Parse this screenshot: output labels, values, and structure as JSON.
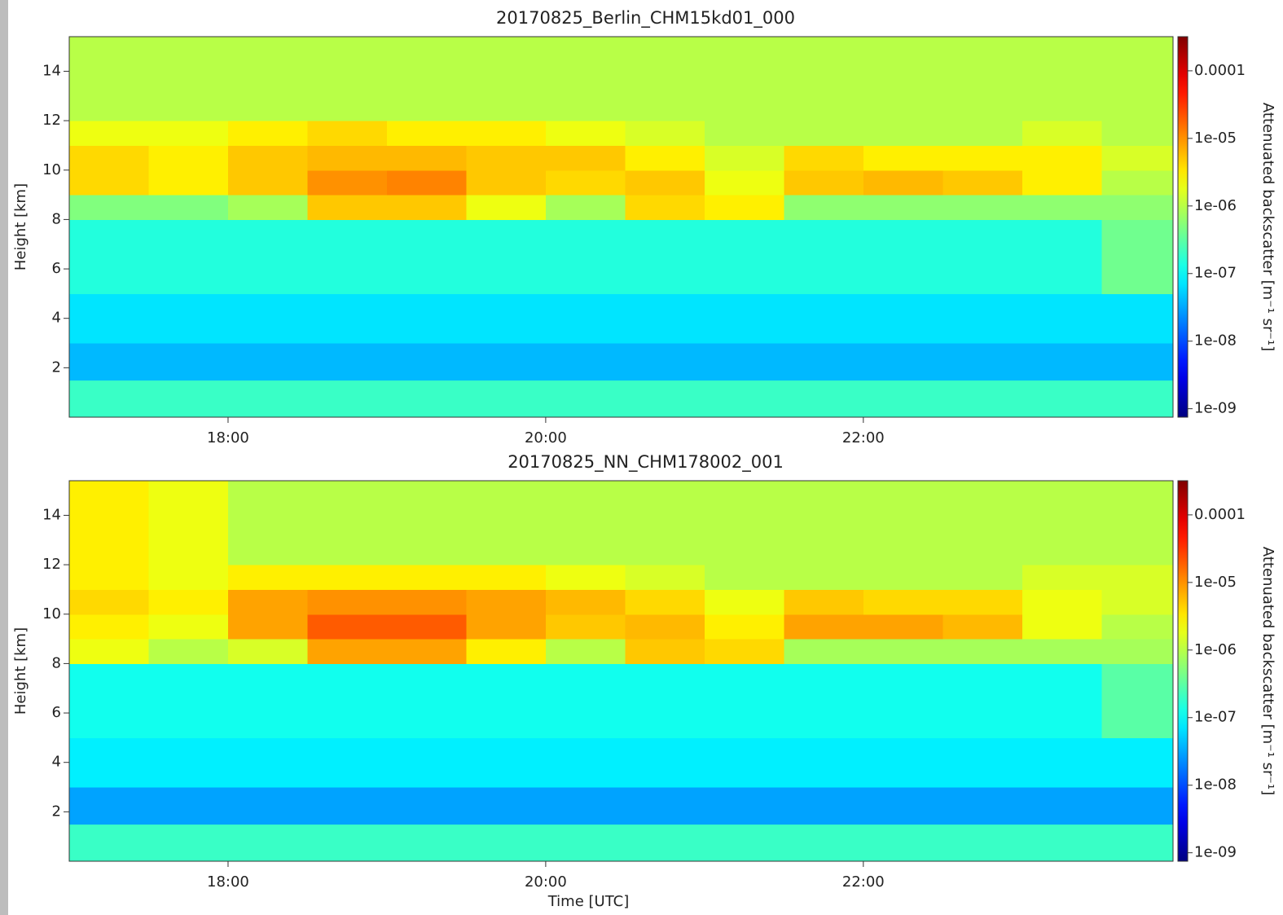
{
  "chart_data": [
    {
      "type": "heatmap",
      "title": "20170825_Berlin_CHM15kd01_000",
      "ylabel": "Height [km]",
      "colorbar_label": "Attenuated backscatter [m⁻¹ sr⁻¹]",
      "colormap": "jet",
      "cscale": "log",
      "x_bins": [
        17,
        17.5,
        18,
        18.5,
        19,
        19.5,
        20,
        20.5,
        21,
        21.5,
        22,
        22.5,
        23,
        23.5,
        23.95
      ],
      "y_bins": [
        0,
        1.5,
        3,
        5,
        8,
        9,
        10,
        11,
        12,
        15.4
      ],
      "z": [
        [
          2e-07,
          2e-07,
          2e-07,
          2e-07,
          2e-07,
          2e-07,
          2e-07,
          2e-07,
          2e-07,
          2e-07,
          2e-07,
          2e-07,
          2e-07,
          2e-07
        ],
        [
          4e-08,
          4e-08,
          4e-08,
          4e-08,
          4e-08,
          4e-08,
          4e-08,
          4e-08,
          4e-08,
          4e-08,
          4e-08,
          4e-08,
          4e-08,
          4e-08
        ],
        [
          7e-08,
          7e-08,
          7e-08,
          7e-08,
          7e-08,
          7e-08,
          7e-08,
          7e-08,
          7e-08,
          7e-08,
          7e-08,
          7e-08,
          7e-08,
          7e-08
        ],
        [
          1.5e-07,
          1.5e-07,
          1.5e-07,
          1.5e-07,
          1.5e-07,
          1.5e-07,
          1.5e-07,
          1.5e-07,
          1.5e-07,
          1.5e-07,
          1.5e-07,
          1.5e-07,
          1.5e-07,
          4e-07
        ],
        [
          5e-07,
          5e-07,
          8e-07,
          5e-06,
          5e-06,
          2e-06,
          8e-07,
          4e-06,
          3e-06,
          6e-07,
          6e-07,
          6e-07,
          6e-07,
          6e-07
        ],
        [
          4e-06,
          3e-06,
          5e-06,
          1e-05,
          1.2e-05,
          5e-06,
          4e-06,
          5e-06,
          2e-06,
          5e-06,
          6e-06,
          5e-06,
          3e-06,
          1e-06
        ],
        [
          4e-06,
          3e-06,
          5e-06,
          6e-06,
          6e-06,
          5e-06,
          5e-06,
          3e-06,
          1.5e-06,
          4e-06,
          3e-06,
          3e-06,
          3e-06,
          1.5e-06
        ],
        [
          2e-06,
          2e-06,
          3e-06,
          4e-06,
          3e-06,
          3e-06,
          2e-06,
          1.5e-06,
          1e-06,
          1e-06,
          1e-06,
          1e-06,
          1.5e-06,
          1e-06
        ],
        [
          1e-06,
          1e-06,
          1e-06,
          1e-06,
          1e-06,
          1e-06,
          1e-06,
          1e-06,
          1e-06,
          1e-06,
          1e-06,
          1e-06,
          1e-06,
          1e-06
        ]
      ],
      "xlim": [
        17,
        23.95
      ],
      "ylim": [
        0,
        15.4
      ],
      "clim": [
        7.5e-10,
        0.00032
      ],
      "xticks": [
        {
          "value": 18,
          "label": "18:00"
        },
        {
          "value": 20,
          "label": "20:00"
        },
        {
          "value": 22,
          "label": "22:00"
        }
      ],
      "yticks": [
        2,
        4,
        6,
        8,
        10,
        12,
        14
      ],
      "cticks": [
        {
          "value": 0.0001,
          "label": "0.0001"
        },
        {
          "value": 1e-05,
          "label": "1e-05"
        },
        {
          "value": 1e-06,
          "label": "1e-06"
        },
        {
          "value": 1e-07,
          "label": "1e-07"
        },
        {
          "value": 1e-08,
          "label": "1e-08"
        },
        {
          "value": 1e-09,
          "label": "1e-09"
        }
      ]
    },
    {
      "type": "heatmap",
      "title": "20170825_NN_CHM178002_001",
      "xlabel": "Time [UTC]",
      "ylabel": "Height [km]",
      "colorbar_label": "Attenuated backscatter [m⁻¹ sr⁻¹]",
      "colormap": "jet",
      "cscale": "log",
      "x_bins": [
        17,
        17.5,
        18,
        18.5,
        19,
        19.5,
        20,
        20.5,
        21,
        21.5,
        22,
        22.5,
        23,
        23.5,
        23.95
      ],
      "y_bins": [
        0,
        1.5,
        3,
        5,
        8,
        9,
        10,
        11,
        12,
        15.4
      ],
      "z": [
        [
          2e-07,
          2e-07,
          2e-07,
          2e-07,
          2e-07,
          2e-07,
          2e-07,
          2e-07,
          2e-07,
          2e-07,
          2e-07,
          2e-07,
          2e-07,
          2e-07
        ],
        [
          3e-08,
          3e-08,
          3e-08,
          3e-08,
          3e-08,
          3e-08,
          3e-08,
          3e-08,
          3e-08,
          3e-08,
          3e-08,
          3e-08,
          3e-08,
          3e-08
        ],
        [
          8e-08,
          8e-08,
          8e-08,
          8e-08,
          8e-08,
          8e-08,
          8e-08,
          8e-08,
          8e-08,
          8e-08,
          8e-08,
          8e-08,
          8e-08,
          8e-08
        ],
        [
          1.2e-07,
          1.2e-07,
          1.2e-07,
          1.2e-07,
          1.2e-07,
          1.2e-07,
          1.2e-07,
          1.2e-07,
          1.2e-07,
          1.2e-07,
          1.2e-07,
          1.2e-07,
          1.2e-07,
          3e-07
        ],
        [
          2e-06,
          1e-06,
          1.5e-06,
          8e-06,
          8e-06,
          3e-06,
          1e-06,
          5e-06,
          4e-06,
          8e-07,
          8e-07,
          8e-07,
          8e-07,
          8e-07
        ],
        [
          3e-06,
          2e-06,
          8e-06,
          2e-05,
          2e-05,
          8e-06,
          5e-06,
          6e-06,
          3e-06,
          8e-06,
          8e-06,
          6e-06,
          2e-06,
          1e-06
        ],
        [
          4e-06,
          3e-06,
          8e-06,
          1e-05,
          1e-05,
          8e-06,
          6e-06,
          4e-06,
          2e-06,
          5e-06,
          4e-06,
          4e-06,
          2e-06,
          1.5e-06
        ],
        [
          3e-06,
          2e-06,
          3e-06,
          3e-06,
          3e-06,
          3e-06,
          2e-06,
          1.5e-06,
          1e-06,
          1e-06,
          1e-06,
          1e-06,
          1.5e-06,
          1.5e-06
        ],
        [
          3e-06,
          2e-06,
          1e-06,
          1e-06,
          1e-06,
          1e-06,
          1e-06,
          1e-06,
          1e-06,
          1e-06,
          1e-06,
          1e-06,
          1e-06,
          1e-06
        ]
      ],
      "xlim": [
        17,
        23.95
      ],
      "ylim": [
        0,
        15.4
      ],
      "clim": [
        7.5e-10,
        0.00032
      ],
      "xticks": [
        {
          "value": 18,
          "label": "18:00"
        },
        {
          "value": 20,
          "label": "20:00"
        },
        {
          "value": 22,
          "label": "22:00"
        }
      ],
      "yticks": [
        2,
        4,
        6,
        8,
        10,
        12,
        14
      ],
      "cticks": [
        {
          "value": 0.0001,
          "label": "0.0001"
        },
        {
          "value": 1e-05,
          "label": "1e-05"
        },
        {
          "value": 1e-06,
          "label": "1e-06"
        },
        {
          "value": 1e-07,
          "label": "1e-07"
        },
        {
          "value": 1e-08,
          "label": "1e-08"
        },
        {
          "value": 1e-09,
          "label": "1e-09"
        }
      ]
    }
  ]
}
